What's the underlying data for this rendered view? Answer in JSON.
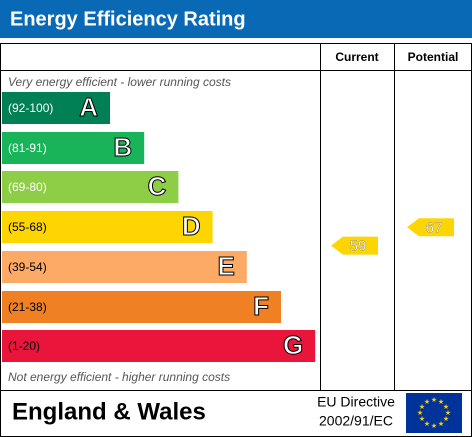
{
  "header": {
    "title": "Energy Efficiency Rating"
  },
  "columns": {
    "current": "Current",
    "potential": "Potential"
  },
  "top_note": "Very energy efficient - lower running costs",
  "bottom_note": "Not energy efficient - higher running costs",
  "bands": [
    {
      "range": "(92-100)",
      "letter": "A",
      "color": "#008054"
    },
    {
      "range": "(81-91)",
      "letter": "B",
      "color": "#19b459"
    },
    {
      "range": "(69-80)",
      "letter": "C",
      "color": "#8dce46"
    },
    {
      "range": "(55-68)",
      "letter": "D",
      "color": "#ffd500"
    },
    {
      "range": "(39-54)",
      "letter": "E",
      "color": "#fcaa65"
    },
    {
      "range": "(21-38)",
      "letter": "F",
      "color": "#ef8023"
    },
    {
      "range": "(1-20)",
      "letter": "G",
      "color": "#e9153b"
    }
  ],
  "ratings": {
    "current": 59,
    "potential": 67
  },
  "footer": {
    "region": "England & Wales",
    "directive_line1": "EU Directive",
    "directive_line2": "2002/91/EC"
  }
}
